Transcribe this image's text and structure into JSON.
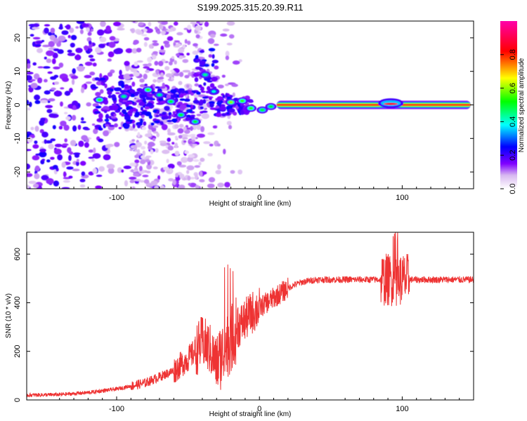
{
  "title": "S199.2025.315.20.39.R11",
  "chart_data": [
    {
      "type": "heatmap",
      "name": "spectrogram",
      "xlabel": "Height of straight line (km)",
      "ylabel": "Frequency (Hz)",
      "xlim": [
        -163,
        150
      ],
      "ylim": [
        -25,
        25
      ],
      "xticks": [
        -100,
        0,
        100
      ],
      "yticks": [
        -20,
        -10,
        0,
        10,
        20
      ],
      "colorbar": {
        "label": "Normalized spectral amplitude",
        "range": [
          0,
          1
        ],
        "ticks": [
          0.0,
          0.2,
          0.4,
          0.6,
          0.8
        ],
        "tick_labels": [
          "0.0",
          "0.2",
          "0.4",
          "0.6",
          "0.8"
        ],
        "colors": [
          "#ffffff",
          "#d8b8f0",
          "#7f00ff",
          "#0000ff",
          "#00ffff",
          "#00ff00",
          "#ffff00",
          "#ff0000",
          "#ff00aa"
        ]
      },
      "ridge": [
        {
          "x": 12,
          "f": 0,
          "a": 0.85
        },
        {
          "x": 40,
          "f": 0,
          "a": 0.85
        },
        {
          "x": 80,
          "f": 0,
          "a": 0.85
        },
        {
          "x": 120,
          "f": 0,
          "a": 0.85
        },
        {
          "x": 148,
          "f": 0,
          "a": 0.85
        }
      ],
      "hotspots": [
        {
          "x": -112,
          "f": 1.5,
          "a": 0.55
        },
        {
          "x": -95,
          "f": 2.5,
          "a": 0.45
        },
        {
          "x": -78,
          "f": 4.5,
          "a": 0.55
        },
        {
          "x": -70,
          "f": 3,
          "a": 0.45
        },
        {
          "x": -62,
          "f": 1,
          "a": 0.5
        },
        {
          "x": -55,
          "f": -3,
          "a": 0.5
        },
        {
          "x": -45,
          "f": -5,
          "a": 0.5
        },
        {
          "x": -38,
          "f": 9,
          "a": 0.45
        },
        {
          "x": -32,
          "f": 4,
          "a": 0.4
        },
        {
          "x": -20,
          "f": 0.8,
          "a": 0.6
        },
        {
          "x": -12,
          "f": 1.2,
          "a": 0.55
        },
        {
          "x": -6,
          "f": -1,
          "a": 0.55
        },
        {
          "x": 2,
          "f": -1.5,
          "a": 0.5
        },
        {
          "x": 8,
          "f": -0.5,
          "a": 0.5
        },
        {
          "x": 88,
          "f": 0.5,
          "a": 0.55
        },
        {
          "x": 96,
          "f": 0.5,
          "a": 0.55
        }
      ]
    },
    {
      "type": "line",
      "name": "snr",
      "xlabel": "Height of straight line (km)",
      "ylabel": "SNR (10 * v/v)",
      "xlim": [
        -163,
        150
      ],
      "ylim": [
        0,
        690
      ],
      "xticks": [
        -100,
        0,
        100
      ],
      "yticks": [
        0,
        200,
        400,
        600
      ],
      "color": "#ee3333",
      "x": [
        -163,
        -140,
        -120,
        -100,
        -80,
        -70,
        -60,
        -50,
        -45,
        -40,
        -35,
        -30,
        -25,
        -20,
        -15,
        -10,
        -5,
        0,
        5,
        10,
        15,
        20,
        25,
        30,
        35,
        40,
        50,
        60,
        70,
        80,
        85,
        90,
        95,
        100,
        105,
        110,
        120,
        130,
        140,
        150
      ],
      "y": [
        20,
        22,
        30,
        45,
        70,
        95,
        120,
        170,
        200,
        240,
        210,
        150,
        200,
        250,
        300,
        330,
        360,
        380,
        400,
        420,
        440,
        460,
        475,
        485,
        490,
        495,
        495,
        495,
        495,
        495,
        495,
        495,
        495,
        495,
        495,
        495,
        495,
        495,
        495,
        495
      ]
    }
  ]
}
